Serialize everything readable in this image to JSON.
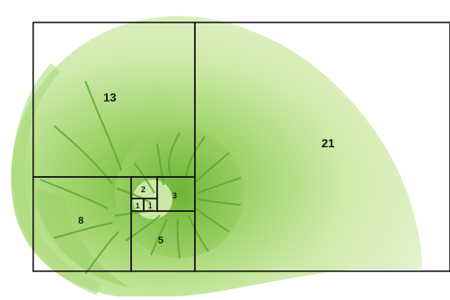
{
  "diagram": {
    "square_labels": {
      "s21": "21",
      "s13": "13",
      "s8": "8",
      "s5": "5",
      "s3": "3",
      "s2": "2",
      "s1a": "1",
      "s1b": "1"
    }
  },
  "colors": {
    "shell_light": "#e4f3cc",
    "shell_mid": "#b6df84",
    "shell_dark": "#7fc247",
    "chamber_line": "#5fa830",
    "grid_line": "#1a1a1a"
  }
}
